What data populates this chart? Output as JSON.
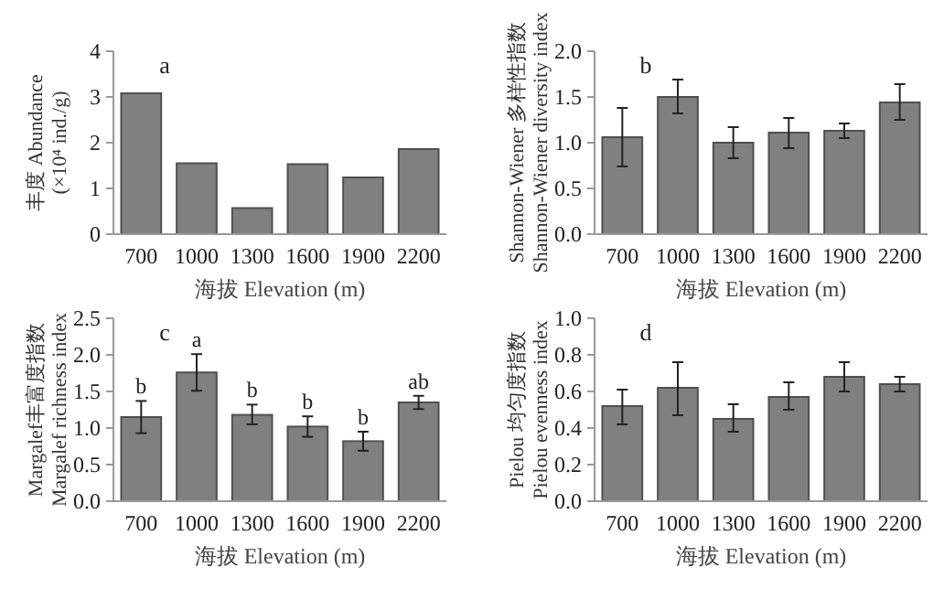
{
  "chart_data": [
    {
      "type": "bar",
      "categories": [
        "700",
        "1000",
        "1300",
        "1600",
        "1900",
        "2200"
      ],
      "values": [
        3.08,
        1.55,
        0.57,
        1.53,
        1.24,
        1.86
      ],
      "color": "#808080",
      "xlabel": "海拔 Elevation (m)",
      "ylabel": "丰度 Abundance\n(×10⁴ ind./g)",
      "ylim": [
        0,
        4
      ],
      "yticks": [
        0,
        1,
        2,
        3,
        4
      ],
      "grid": false,
      "annotations": [
        "a"
      ]
    },
    {
      "type": "bar",
      "categories": [
        "700",
        "1000",
        "1300",
        "1600",
        "1900",
        "2200"
      ],
      "values": [
        1.06,
        1.5,
        1.0,
        1.11,
        1.13,
        1.44
      ],
      "errors": [
        [
          0.74,
          1.38
        ],
        [
          1.32,
          1.69
        ],
        [
          0.83,
          1.17
        ],
        [
          0.94,
          1.27
        ],
        [
          1.05,
          1.21
        ],
        [
          1.25,
          1.64
        ]
      ],
      "color": "#808080",
      "xlabel": "海拔 Elevation (m)",
      "ylabel": "Shannon-Wiener 多样性指数\nShannon-Wiener diversity index",
      "ylim": [
        0,
        2
      ],
      "yticks": [
        {
          "value": 0,
          "label": "0.0"
        },
        {
          "value": 0.5,
          "label": "0.5"
        },
        {
          "value": 1,
          "label": "1.0"
        },
        {
          "value": 1.5,
          "label": "1.5"
        },
        {
          "value": 2,
          "label": "2.0"
        }
      ],
      "grid": false,
      "annotations": [
        "b"
      ]
    },
    {
      "type": "bar",
      "categories": [
        "700",
        "1000",
        "1300",
        "1600",
        "1900",
        "2200"
      ],
      "values": [
        1.15,
        1.76,
        1.18,
        1.02,
        0.82,
        1.35
      ],
      "errors": [
        [
          0.93,
          1.37
        ],
        [
          1.51,
          2.01
        ],
        [
          1.05,
          1.32
        ],
        [
          0.88,
          1.16
        ],
        [
          0.69,
          0.95
        ],
        [
          1.26,
          1.44
        ]
      ],
      "color": "#808080",
      "xlabel": "海拔 Elevation (m)",
      "ylabel": "Margalef丰富度指数\nMargalef richness index",
      "ylim": [
        0,
        2.5
      ],
      "yticks": [
        {
          "value": 0,
          "label": "0.0"
        },
        {
          "value": 0.5,
          "label": "0.5"
        },
        {
          "value": 1,
          "label": "1.0"
        },
        {
          "value": 1.5,
          "label": "1.5"
        },
        {
          "value": 2,
          "label": "2.0"
        },
        {
          "value": 2.5,
          "label": "2.5"
        }
      ],
      "grid": false,
      "annotations": [
        "c",
        {
          "text": "b",
          "x": "700",
          "y": 1.37
        },
        {
          "text": "a",
          "x": "1000",
          "y": 2.01
        },
        {
          "text": "b",
          "x": "1300",
          "y": 1.32
        },
        {
          "text": "b",
          "x": "1600",
          "y": 1.16
        },
        {
          "text": "b",
          "x": "1900",
          "y": 0.95
        },
        {
          "text": "ab",
          "x": "2200",
          "y": 1.44
        }
      ]
    },
    {
      "type": "bar",
      "categories": [
        "700",
        "1000",
        "1300",
        "1600",
        "1900",
        "2200"
      ],
      "values": [
        0.52,
        0.62,
        0.45,
        0.57,
        0.68,
        0.64
      ],
      "errors": [
        [
          0.42,
          0.61
        ],
        [
          0.47,
          0.76
        ],
        [
          0.38,
          0.53
        ],
        [
          0.5,
          0.65
        ],
        [
          0.6,
          0.76
        ],
        [
          0.6,
          0.68
        ]
      ],
      "color": "#808080",
      "xlabel": "海拔 Elevation (m)",
      "ylabel": "Pielou 均匀度指数\nPielou evenness index",
      "ylim": [
        0,
        1
      ],
      "yticks": [
        {
          "value": 0,
          "label": "0.0"
        },
        {
          "value": 0.2,
          "label": "0.2"
        },
        {
          "value": 0.4,
          "label": "0.4"
        },
        {
          "value": 0.6,
          "label": "0.6"
        },
        {
          "value": 0.8,
          "label": "0.8"
        },
        {
          "value": 1,
          "label": "1.0"
        }
      ],
      "grid": false,
      "annotations": [
        "d"
      ]
    }
  ]
}
